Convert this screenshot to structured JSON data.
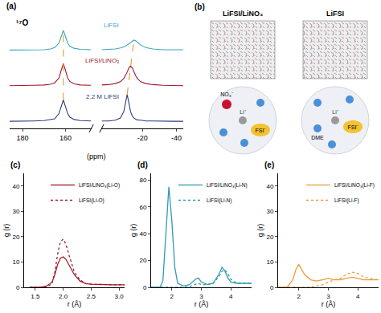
{
  "chart_data": [
    {
      "type": "line",
      "label": "(a)",
      "title": "¹⁷O",
      "x_label": "(ppm)",
      "tick_labels": "x",
      "grid": false,
      "ylim": [
        -0.2,
        3.0
      ],
      "segments": [
        {
          "xlim": [
            186,
            148
          ],
          "xticks": [
            180,
            160
          ],
          "x": [
            186,
            180,
            175,
            170,
            167,
            165,
            163,
            162,
            161,
            160,
            159,
            158,
            156,
            153,
            150,
            148
          ]
        },
        {
          "xlim": [
            4,
            -44
          ],
          "xticks": [
            -20,
            -40
          ],
          "x": [
            4,
            0,
            -4,
            -7,
            -9,
            -10,
            -11,
            -12,
            -13,
            -14,
            -15,
            -16,
            -17,
            -19,
            -22,
            -26,
            -32,
            -38,
            -44
          ]
        }
      ],
      "series": [
        {
          "name": "LiFSI",
          "color": "#3aa6b9",
          "values": [
            [
              2.0,
              2.0,
              2.01,
              2.01,
              2.03,
              2.07,
              2.2,
              2.38,
              2.55,
              2.38,
              2.2,
              2.11,
              2.05,
              2.02,
              2.01,
              2.01
            ],
            [
              2.01,
              2.02,
              2.03,
              2.06,
              2.09,
              2.11,
              2.14,
              2.18,
              2.22,
              2.26,
              2.28,
              2.26,
              2.22,
              2.14,
              2.07,
              2.03,
              2.01,
              2.01,
              2.01
            ]
          ]
        },
        {
          "name": "LiFSI/LiNO₃",
          "color": "#a0182c",
          "values": [
            [
              1.0,
              1.0,
              1.01,
              1.02,
              1.04,
              1.08,
              1.22,
              1.43,
              1.62,
              1.43,
              1.22,
              1.12,
              1.05,
              1.02,
              1.01,
              1.01
            ],
            [
              1.02,
              1.03,
              1.06,
              1.11,
              1.2,
              1.28,
              1.38,
              1.5,
              1.55,
              1.5,
              1.38,
              1.28,
              1.2,
              1.11,
              1.06,
              1.03,
              1.01,
              1.01,
              1.0
            ]
          ]
        },
        {
          "name": "2.2 M LiFSI",
          "color": "#2b3a7a",
          "values": [
            [
              0.0,
              0.0,
              0.01,
              0.02,
              0.04,
              0.07,
              0.22,
              0.41,
              0.6,
              0.41,
              0.22,
              0.12,
              0.05,
              0.02,
              0.01,
              0.01
            ],
            [
              0.01,
              0.01,
              0.03,
              0.09,
              0.27,
              0.52,
              0.75,
              0.52,
              0.27,
              0.15,
              0.09,
              0.06,
              0.04,
              0.03,
              0.01,
              0.01,
              0.0,
              0.0,
              0.0
            ]
          ]
        }
      ],
      "guides": [
        {
          "segment": 0,
          "x": [
            161,
            161
          ],
          "y": [
            0.6,
            2.55
          ],
          "color": "#e8a33d",
          "line_style": "dash"
        },
        {
          "segment": 1,
          "x": [
            -11,
            -13,
            -15
          ],
          "y": [
            0.75,
            1.55,
            2.28
          ],
          "color": "#e8a33d",
          "line_style": "dash"
        }
      ]
    },
    {
      "type": "line",
      "label": "(c)",
      "x_label": "r (Å)",
      "y_label": "g (r)",
      "grid": false,
      "legend": "upper right",
      "xlim": [
        1.3,
        3.1
      ],
      "xticks": [
        1.5,
        {
          "value": 2,
          "label": "2.0"
        },
        2.5,
        {
          "value": 3,
          "label": "3.0"
        }
      ],
      "ylim": [
        0,
        45
      ],
      "yticks": [
        0,
        10,
        20,
        30,
        40
      ],
      "x": [
        1.4,
        1.6,
        1.7,
        1.8,
        1.85,
        1.9,
        1.95,
        2.0,
        2.05,
        2.1,
        2.2,
        2.3,
        2.4,
        2.5,
        2.7,
        2.9,
        3.1
      ],
      "series": [
        {
          "name": "LiFSI/LiNO₃(Li-O)",
          "color": "#a0182c",
          "line_style": "solid",
          "values": [
            0,
            0,
            0.5,
            2,
            5,
            9,
            11.5,
            12,
            11,
            9,
            5,
            2.5,
            1.5,
            1.2,
            1,
            1,
            1
          ]
        },
        {
          "name": "LiFSI(Li-O)",
          "color": "#a0182c",
          "line_style": "dot",
          "values": [
            0,
            0,
            0,
            1.5,
            6,
            13,
            18,
            19,
            17,
            13,
            6,
            3,
            1.5,
            1.2,
            1,
            1,
            1
          ]
        }
      ]
    },
    {
      "type": "line",
      "label": "(d)",
      "x_label": "r (Å)",
      "y_label": "g (r)",
      "grid": false,
      "legend": "upper right",
      "xlim": [
        1.3,
        4.7
      ],
      "xticks": [
        2,
        3,
        4
      ],
      "ylim": [
        0,
        85
      ],
      "yticks": [
        0,
        20,
        40,
        60,
        80
      ],
      "x": [
        1.3,
        1.6,
        1.7,
        1.8,
        1.9,
        2.0,
        2.1,
        2.2,
        2.4,
        2.6,
        2.8,
        2.9,
        3.0,
        3.2,
        3.4,
        3.6,
        3.7,
        3.8,
        3.9,
        4.0,
        4.2,
        4.4,
        4.7
      ],
      "series": [
        {
          "name": "LiFSI/LiNO₃(Li-N)",
          "color": "#2e9bb0",
          "line_style": "solid",
          "values": [
            0,
            0,
            5,
            40,
            75,
            50,
            15,
            3,
            1,
            2,
            6,
            7,
            4,
            2,
            3,
            10,
            15,
            12,
            7,
            4,
            3,
            3,
            3
          ]
        },
        {
          "name": "LiFSI(Li-N)",
          "color": "#2e9bb0",
          "line_style": "dot",
          "values": [
            0,
            0,
            0,
            0,
            0,
            0,
            0,
            0,
            0,
            0.5,
            2,
            3,
            2,
            2,
            3,
            8,
            12,
            13,
            10,
            6,
            3,
            3,
            3
          ]
        }
      ]
    },
    {
      "type": "line",
      "label": "(e)",
      "x_label": "r (Å)",
      "y_label": "g (r)",
      "grid": false,
      "legend": "upper right",
      "xlim": [
        1.3,
        4.7
      ],
      "xticks": [
        2,
        3,
        4
      ],
      "ylim": [
        0,
        45
      ],
      "yticks": [
        0,
        10,
        20,
        30,
        40
      ],
      "x": [
        1.3,
        1.6,
        1.8,
        1.9,
        2.0,
        2.1,
        2.2,
        2.4,
        2.6,
        2.8,
        3.0,
        3.2,
        3.4,
        3.6,
        3.8,
        4.0,
        4.2,
        4.4,
        4.7
      ],
      "series": [
        {
          "name": "LiFSI/LiNO₃(Li-F)",
          "color": "#ee9a3a",
          "line_style": "solid",
          "values": [
            0,
            0,
            3,
            7,
            9,
            7,
            5,
            3,
            2.5,
            3,
            3.5,
            3,
            3,
            3.5,
            4,
            3.5,
            3,
            3,
            3
          ]
        },
        {
          "name": "LiFSI(Li-F)",
          "color": "#ee9a3a",
          "line_style": "dot",
          "values": [
            0,
            0,
            0,
            0,
            0,
            0,
            0,
            0,
            0.5,
            1,
            2,
            3,
            3.5,
            5,
            6,
            5.5,
            4,
            3.5,
            3
          ]
        }
      ]
    }
  ],
  "panel_b": {
    "label": "(b)",
    "systems": [
      {
        "title": "LiFSI/LiNO₃",
        "species": [
          {
            "label": "Li⁺",
            "color": "#9a9a9a"
          },
          {
            "label": "NO₃⁻",
            "color": "#c8102e"
          },
          {
            "label": "FSI⁻",
            "color": "#f2c230"
          }
        ]
      },
      {
        "title": "LiFSI",
        "species": [
          {
            "label": "Li⁺",
            "color": "#9a9a9a"
          },
          {
            "label": "DME",
            "color": "#4a90d9"
          },
          {
            "label": "FSI⁻",
            "color": "#f2c230"
          }
        ]
      }
    ]
  }
}
